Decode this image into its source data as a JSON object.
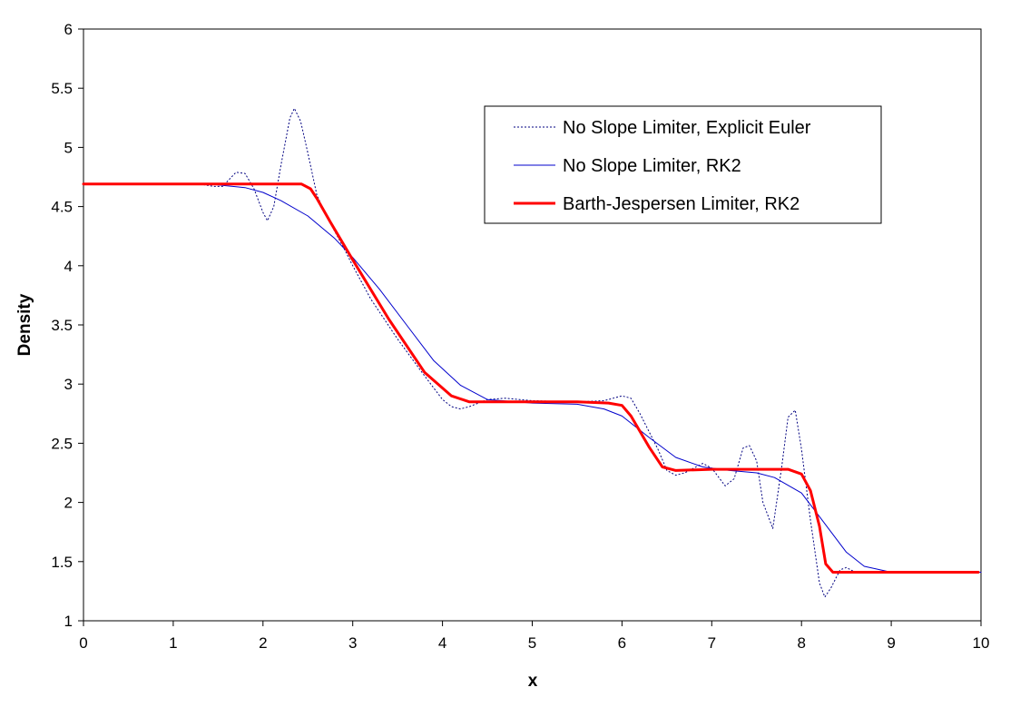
{
  "chart_data": {
    "type": "line",
    "title": "",
    "xlabel": "x",
    "ylabel": "Density",
    "xlim": [
      0,
      10
    ],
    "ylim": [
      1,
      6
    ],
    "x_ticks": [
      "0",
      "1",
      "2",
      "3",
      "4",
      "5",
      "6",
      "7",
      "8",
      "9",
      "10"
    ],
    "y_ticks": [
      "1",
      "1.5",
      "2",
      "2.5",
      "3",
      "3.5",
      "4",
      "4.5",
      "5",
      "5.5",
      "6"
    ],
    "grid": false,
    "legend_position": "top-right",
    "series": [
      {
        "name": "No Slope Limiter, Explicit Euler",
        "color": "#000080",
        "style": "dotted",
        "points": [
          [
            0.0,
            4.69
          ],
          [
            1.0,
            4.69
          ],
          [
            1.3,
            4.69
          ],
          [
            1.45,
            4.67
          ],
          [
            1.55,
            4.67
          ],
          [
            1.7,
            4.79
          ],
          [
            1.8,
            4.78
          ],
          [
            1.9,
            4.65
          ],
          [
            2.0,
            4.45
          ],
          [
            2.05,
            4.38
          ],
          [
            2.12,
            4.5
          ],
          [
            2.2,
            4.85
          ],
          [
            2.3,
            5.25
          ],
          [
            2.35,
            5.33
          ],
          [
            2.42,
            5.22
          ],
          [
            2.5,
            4.95
          ],
          [
            2.6,
            4.6
          ],
          [
            2.7,
            4.43
          ],
          [
            2.9,
            4.15
          ],
          [
            3.0,
            4.0
          ],
          [
            3.2,
            3.72
          ],
          [
            3.5,
            3.38
          ],
          [
            3.8,
            3.07
          ],
          [
            4.0,
            2.87
          ],
          [
            4.1,
            2.81
          ],
          [
            4.2,
            2.79
          ],
          [
            4.3,
            2.81
          ],
          [
            4.5,
            2.87
          ],
          [
            4.7,
            2.88
          ],
          [
            5.0,
            2.86
          ],
          [
            5.5,
            2.85
          ],
          [
            5.8,
            2.86
          ],
          [
            6.0,
            2.9
          ],
          [
            6.1,
            2.88
          ],
          [
            6.2,
            2.75
          ],
          [
            6.3,
            2.6
          ],
          [
            6.4,
            2.45
          ],
          [
            6.5,
            2.27
          ],
          [
            6.6,
            2.23
          ],
          [
            6.7,
            2.25
          ],
          [
            6.9,
            2.33
          ],
          [
            7.0,
            2.29
          ],
          [
            7.15,
            2.14
          ],
          [
            7.25,
            2.2
          ],
          [
            7.35,
            2.46
          ],
          [
            7.42,
            2.48
          ],
          [
            7.5,
            2.35
          ],
          [
            7.57,
            2.0
          ],
          [
            7.68,
            1.78
          ],
          [
            7.78,
            2.3
          ],
          [
            7.85,
            2.72
          ],
          [
            7.93,
            2.78
          ],
          [
            8.0,
            2.45
          ],
          [
            8.1,
            1.85
          ],
          [
            8.2,
            1.32
          ],
          [
            8.26,
            1.2
          ],
          [
            8.33,
            1.28
          ],
          [
            8.43,
            1.43
          ],
          [
            8.5,
            1.45
          ],
          [
            8.6,
            1.41
          ],
          [
            9.0,
            1.41
          ],
          [
            10.0,
            1.41
          ]
        ]
      },
      {
        "name": "No Slope Limiter, RK2",
        "color": "#0000cc",
        "style": "solid",
        "points": [
          [
            0.0,
            4.69
          ],
          [
            1.4,
            4.69
          ],
          [
            1.8,
            4.66
          ],
          [
            2.0,
            4.62
          ],
          [
            2.2,
            4.55
          ],
          [
            2.5,
            4.42
          ],
          [
            2.8,
            4.23
          ],
          [
            3.0,
            4.07
          ],
          [
            3.3,
            3.8
          ],
          [
            3.6,
            3.5
          ],
          [
            3.9,
            3.2
          ],
          [
            4.2,
            2.99
          ],
          [
            4.5,
            2.87
          ],
          [
            5.0,
            2.84
          ],
          [
            5.5,
            2.83
          ],
          [
            5.8,
            2.79
          ],
          [
            6.0,
            2.73
          ],
          [
            6.3,
            2.55
          ],
          [
            6.6,
            2.38
          ],
          [
            6.9,
            2.3
          ],
          [
            7.2,
            2.27
          ],
          [
            7.5,
            2.25
          ],
          [
            7.7,
            2.21
          ],
          [
            8.0,
            2.08
          ],
          [
            8.2,
            1.88
          ],
          [
            8.5,
            1.58
          ],
          [
            8.7,
            1.46
          ],
          [
            9.0,
            1.41
          ],
          [
            10.0,
            1.41
          ]
        ]
      },
      {
        "name": "Barth-Jespersen Limiter, RK2",
        "color": "#ff0000",
        "style": "thick",
        "points": [
          [
            0.0,
            4.69
          ],
          [
            2.43,
            4.69
          ],
          [
            2.53,
            4.65
          ],
          [
            2.6,
            4.57
          ],
          [
            2.75,
            4.37
          ],
          [
            3.0,
            4.05
          ],
          [
            3.4,
            3.55
          ],
          [
            3.8,
            3.1
          ],
          [
            4.1,
            2.9
          ],
          [
            4.3,
            2.85
          ],
          [
            4.6,
            2.85
          ],
          [
            5.5,
            2.85
          ],
          [
            5.85,
            2.84
          ],
          [
            6.0,
            2.82
          ],
          [
            6.1,
            2.73
          ],
          [
            6.3,
            2.47
          ],
          [
            6.45,
            2.3
          ],
          [
            6.6,
            2.27
          ],
          [
            7.0,
            2.28
          ],
          [
            7.7,
            2.28
          ],
          [
            7.85,
            2.28
          ],
          [
            8.0,
            2.24
          ],
          [
            8.1,
            2.1
          ],
          [
            8.2,
            1.8
          ],
          [
            8.27,
            1.48
          ],
          [
            8.35,
            1.41
          ],
          [
            9.0,
            1.41
          ],
          [
            9.97,
            1.41
          ]
        ]
      }
    ]
  }
}
